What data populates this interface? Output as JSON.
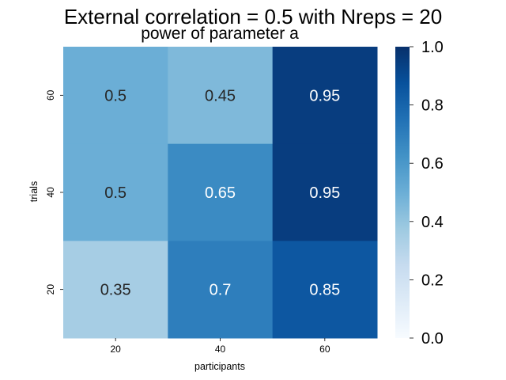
{
  "chart_data": {
    "type": "heatmap",
    "title": "External correlation = 0.5 with Nreps = 20",
    "subtitle": "power of parameter a",
    "xlabel": "participants",
    "ylabel": "trials",
    "x_categories": [
      "20",
      "40",
      "60"
    ],
    "y_categories": [
      "60",
      "40",
      "20"
    ],
    "values": [
      [
        0.5,
        0.45,
        0.95
      ],
      [
        0.5,
        0.65,
        0.95
      ],
      [
        0.35,
        0.7,
        0.85
      ]
    ],
    "value_labels": [
      [
        "0.5",
        "0.45",
        "0.95"
      ],
      [
        "0.5",
        "0.65",
        "0.95"
      ],
      [
        "0.35",
        "0.7",
        "0.85"
      ]
    ],
    "colorbar": {
      "range": [
        0.0,
        1.0
      ],
      "ticks": [
        "0.0",
        "0.2",
        "0.4",
        "0.6",
        "0.8",
        "1.0"
      ],
      "colormap": "Blues"
    },
    "grid": false,
    "annotated": true
  }
}
